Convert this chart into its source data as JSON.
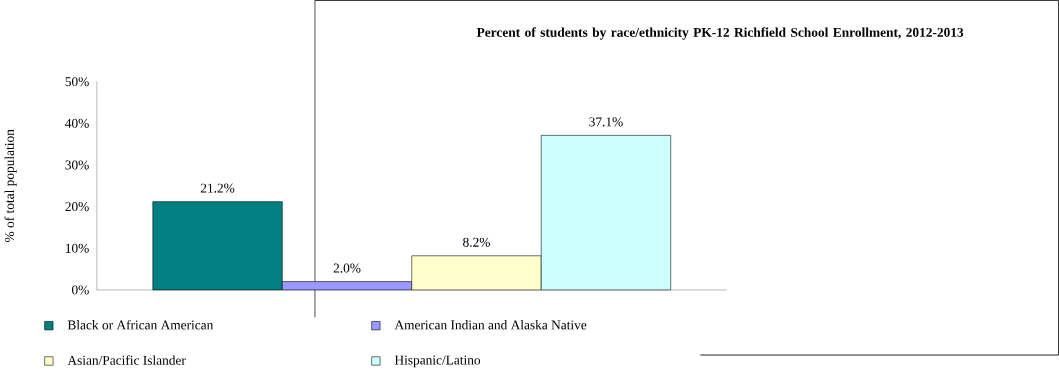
{
  "chart_data": {
    "type": "bar",
    "title": "Percent of students by race/ethnicity PK-12 Richfield School Enrollment, 2012-2013",
    "ylabel": "% of total population",
    "categories": [
      null
    ],
    "series": [
      {
        "name": "Black or African American",
        "color": "#008080",
        "values": [
          21.2
        ],
        "value_labels": [
          "21.2%"
        ]
      },
      {
        "name": "American Indian and Alaska Native",
        "color": "#9999ff",
        "values": [
          2.0
        ],
        "value_labels": [
          "2.0%"
        ]
      },
      {
        "name": "Asian/Pacific Islander",
        "color": "#ffffcc",
        "values": [
          8.2
        ],
        "value_labels": [
          "8.2%"
        ]
      },
      {
        "name": "Hispanic/Latino",
        "color": "#ccffff",
        "values": [
          37.1
        ],
        "value_labels": [
          "37.1%"
        ]
      }
    ],
    "ylim": [
      0,
      50
    ],
    "yticks": [
      {
        "value": 0,
        "label": "0%"
      },
      {
        "value": 10,
        "label": "10%"
      },
      {
        "value": 20,
        "label": "20%"
      },
      {
        "value": 30,
        "label": "30%"
      },
      {
        "value": 40,
        "label": "40%"
      },
      {
        "value": 50,
        "label": "50%"
      }
    ],
    "legend": "bottom"
  }
}
